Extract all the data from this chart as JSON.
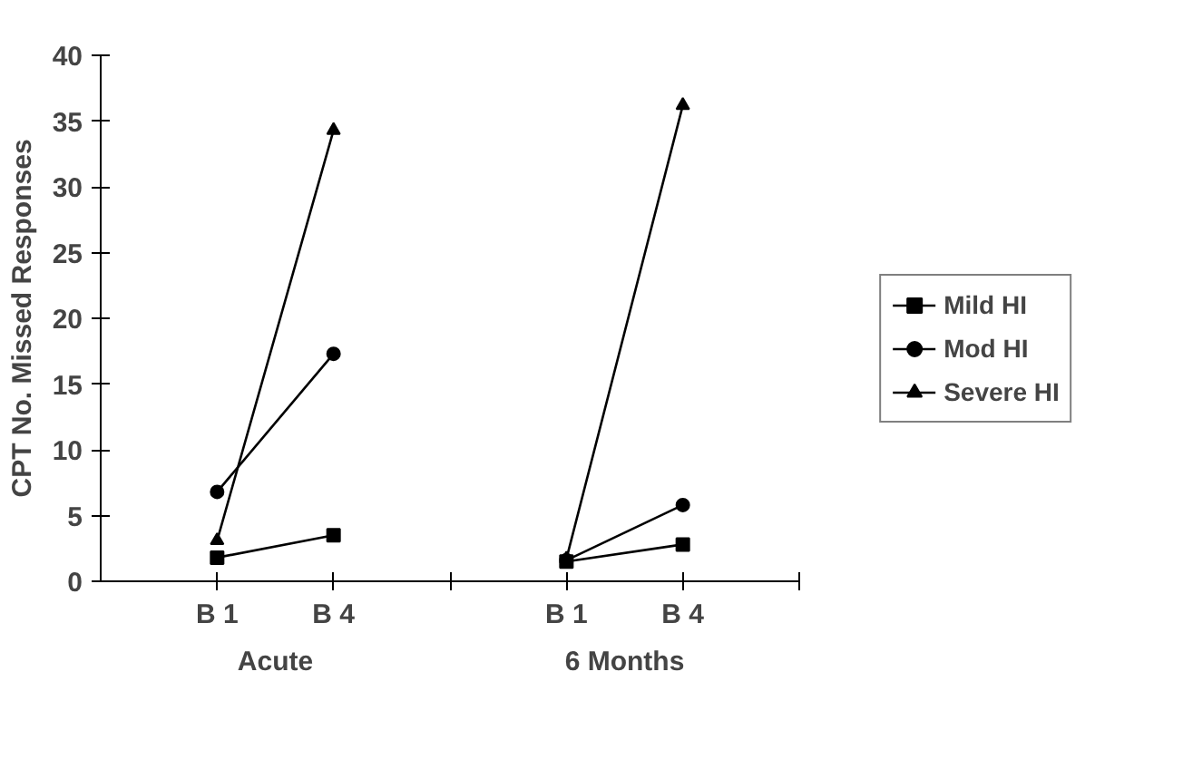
{
  "chart_data": {
    "type": "line",
    "ylabel": "CPT No. Missed Responses",
    "categories": [
      null,
      "B 1",
      "B 4",
      null,
      "B 1",
      "B 4",
      null
    ],
    "ylim": [
      0,
      40
    ],
    "yticks": [
      0,
      5,
      10,
      15,
      20,
      25,
      30,
      35,
      40
    ],
    "grid": false,
    "legend": "right",
    "series": [
      {
        "name": "Mild HI",
        "color": "#000000",
        "marker": "square",
        "values": [
          null,
          1.8,
          3.5,
          null,
          1.5,
          2.8,
          null
        ]
      },
      {
        "name": "Mod HI",
        "color": "#000000",
        "marker": "circle",
        "values": [
          null,
          6.8,
          17.3,
          null,
          1.6,
          5.8,
          null
        ]
      },
      {
        "name": "Severe HI",
        "color": "#000000",
        "marker": "triangle",
        "values": [
          null,
          3.1,
          34.3,
          null,
          1.7,
          36.2,
          null
        ]
      }
    ],
    "annotations": [
      "Acute",
      "6 Months"
    ]
  }
}
